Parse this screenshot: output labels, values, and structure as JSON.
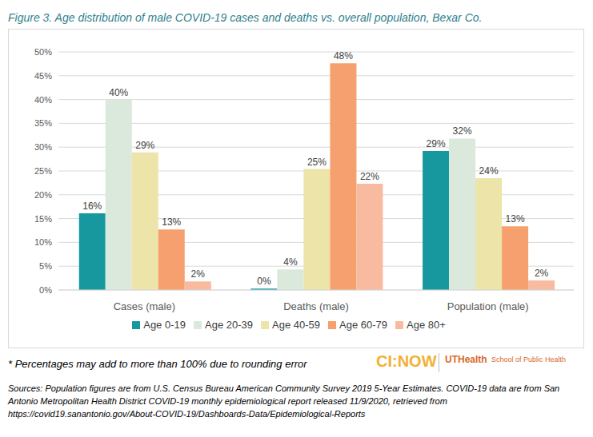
{
  "chart_data": {
    "type": "bar",
    "title": "Figure 3. Age distribution of male COVID-19 cases and deaths vs. overall population, Bexar Co.",
    "categories": [
      "Cases (male)",
      "Deaths (male)",
      "Population (male)"
    ],
    "series": [
      {
        "name": "Age 0-19",
        "color": "#17989e",
        "values": [
          16.1,
          0.3,
          29.2
        ],
        "value_labels": [
          "16%",
          "0%",
          "29%"
        ]
      },
      {
        "name": "Age 20-39",
        "color": "#dbe8dc",
        "values": [
          40,
          4.3,
          31.8
        ],
        "value_labels": [
          "40%",
          "4%",
          "32%"
        ]
      },
      {
        "name": "Age 40-59",
        "color": "#ece4a8",
        "values": [
          28.9,
          25.4,
          23.5
        ],
        "value_labels": [
          "29%",
          "25%",
          "24%"
        ]
      },
      {
        "name": "Age 60-79",
        "color": "#f5a06e",
        "values": [
          12.7,
          47.6,
          13.4
        ],
        "value_labels": [
          "13%",
          "48%",
          "13%"
        ]
      },
      {
        "name": "Age 80+",
        "color": "#f8bb9f",
        "values": [
          1.8,
          22.3,
          2
        ],
        "value_labels": [
          "2%",
          "22%",
          "2%"
        ]
      }
    ],
    "ylim": [
      0,
      50
    ],
    "yticks": [
      {
        "value": 0,
        "label": "0%"
      },
      {
        "value": 5,
        "label": "5%"
      },
      {
        "value": 10,
        "label": "10%"
      },
      {
        "value": 15,
        "label": "15%"
      },
      {
        "value": 20,
        "label": "20%"
      },
      {
        "value": 25,
        "label": "25%"
      },
      {
        "value": 30,
        "label": "30%"
      },
      {
        "value": 35,
        "label": "35%"
      },
      {
        "value": 40,
        "label": "40%"
      },
      {
        "value": 45,
        "label": "45%"
      },
      {
        "value": 50,
        "label": "50%"
      }
    ],
    "grid": true,
    "legend": "bottom",
    "data_labels": true,
    "footnote": "* Percentages may add to more than 100% due to rounding error",
    "source": "Sources: Population figures are from U.S. Census Bureau American Community Survey 2019 5-Year Estimates. COVID-19 data are from San Antonio Metropolitan Health District COVID-19 monthly epidemiological report released 11/9/2020, retrieved from https://covid19.sanantonio.gov/About-COVID-19/Dashboards-Data/Epidemiological-Reports",
    "logo": {
      "left": "CI:NOW",
      "right": "UTHealth",
      "right_sub": "School of Public Health"
    }
  }
}
